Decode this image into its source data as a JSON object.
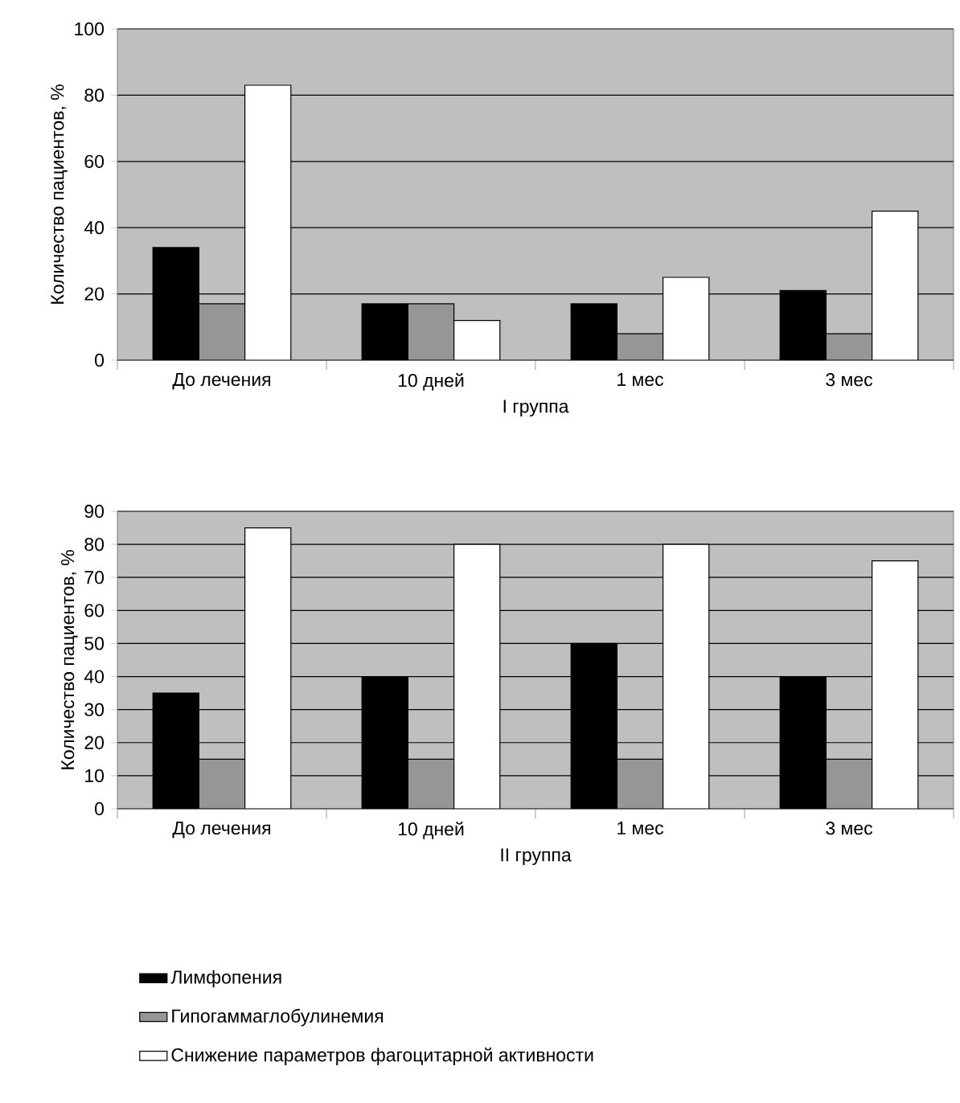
{
  "chart_data": [
    {
      "type": "bar",
      "xlabel": "I группа",
      "ylabel": "Количество пациентов, %",
      "categories": [
        "До лечения",
        "10 дней",
        "1 мес",
        "3 мес"
      ],
      "ylim": [
        0,
        100
      ],
      "yticks": [
        0,
        20,
        40,
        60,
        80,
        100
      ],
      "grid": "y",
      "legend": false,
      "series": [
        {
          "color": "#000000",
          "values": [
            34,
            17,
            17,
            21
          ]
        },
        {
          "color": "#969696",
          "values": [
            17,
            17,
            8,
            8
          ]
        },
        {
          "color": "#ffffff",
          "values": [
            83,
            12,
            25,
            45
          ]
        }
      ]
    },
    {
      "type": "bar",
      "xlabel": "II группа",
      "ylabel": "Количество пациентов, %",
      "categories": [
        "До лечения",
        "10 дней",
        "1 мес",
        "3 мес"
      ],
      "ylim": [
        0,
        90
      ],
      "yticks": [
        0,
        10,
        20,
        30,
        40,
        50,
        60,
        70,
        80,
        90
      ],
      "grid": "y",
      "legend": "bottom",
      "series": [
        {
          "name": "Лимфопения",
          "color": "#000000",
          "values": [
            35,
            40,
            50,
            40
          ]
        },
        {
          "name": "Гипогаммаглобулинемия",
          "color": "#969696",
          "values": [
            15,
            15,
            15,
            15
          ]
        },
        {
          "name": "Снижение параметров фагоцитарной активности",
          "color": "#ffffff",
          "values": [
            85,
            80,
            80,
            75
          ]
        }
      ]
    }
  ]
}
